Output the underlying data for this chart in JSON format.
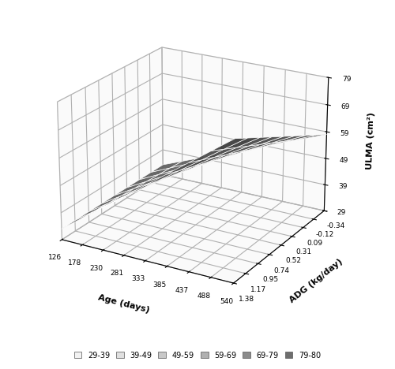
{
  "age_ticks": [
    126,
    178,
    230,
    281,
    333,
    385,
    437,
    488,
    540
  ],
  "adg_ticks": [
    1.38,
    1.17,
    0.95,
    0.74,
    0.52,
    0.31,
    0.09,
    -0.12,
    -0.34
  ],
  "ulma_ticks": [
    29,
    39,
    49,
    59,
    69,
    79
  ],
  "xlabel": "Age (days)",
  "ylabel": "ADG (kg/day)",
  "zlabel": "ULMA (cm²)",
  "legend_labels": [
    "29-39",
    "39-49",
    "49-59",
    "59-69",
    "69-79",
    "79-80"
  ],
  "legend_colors": [
    "#f2f2f2",
    "#e0e0e0",
    "#c8c8c8",
    "#b0b0b0",
    "#8c8c8c",
    "#6e6e6e"
  ],
  "age_min": 126,
  "age_max": 540,
  "adg_min": -0.34,
  "adg_max": 1.38,
  "ulma_min": 29,
  "ulma_max": 79,
  "elev": 22,
  "azim": -60,
  "surface_alpha": 0.92,
  "edge_color": "white",
  "edge_linewidth": 0.5,
  "grid_color": "#c8c8c8",
  "pane_color": "#f5f5f5"
}
